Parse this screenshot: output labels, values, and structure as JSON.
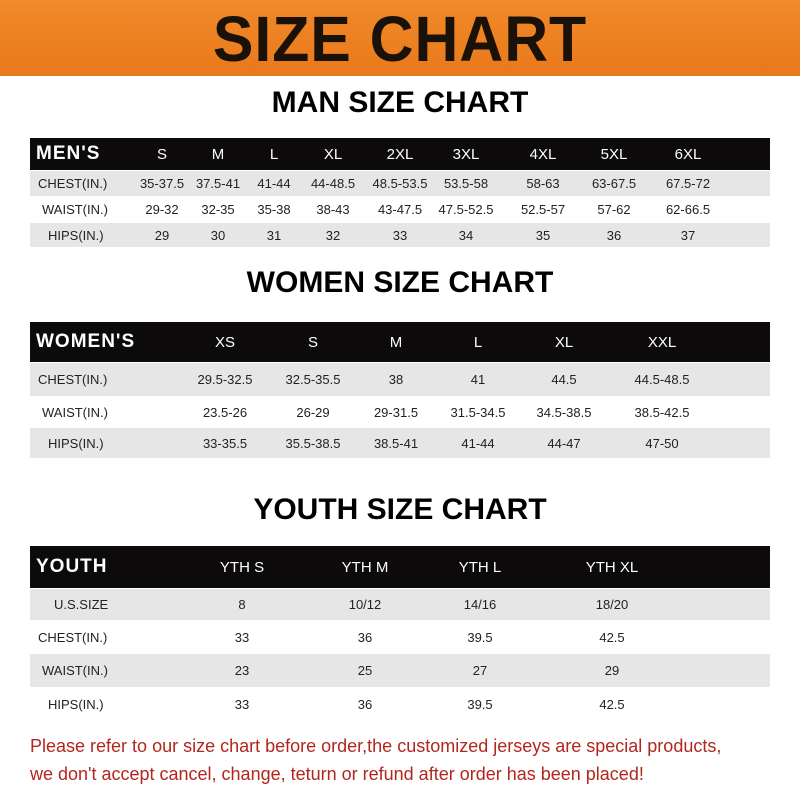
{
  "banner": {
    "title": "SIZE CHART",
    "color": "#ee8322"
  },
  "men": {
    "title": "MAN SIZE CHART",
    "header": [
      "MEN'S",
      "S",
      "M",
      "L",
      "XL",
      "2XL",
      "3XL",
      "4XL",
      "5XL",
      "6XL"
    ],
    "rows": [
      [
        "CHEST(IN.)",
        "35-37.5",
        "37.5-41",
        "41-44",
        "44-48.5",
        "48.5-53.5",
        "53.5-58",
        "58-63",
        "63-67.5",
        "67.5-72"
      ],
      [
        "WAIST(IN.)",
        "29-32",
        "32-35",
        "35-38",
        "38-43",
        "43-47.5",
        "47.5-52.5",
        "52.5-57",
        "57-62",
        "62-66.5"
      ],
      [
        "HIPS(IN.)",
        "29",
        "30",
        "31",
        "32",
        "33",
        "34",
        "35",
        "36",
        "37"
      ]
    ]
  },
  "women": {
    "title": "WOMEN SIZE CHART",
    "header": [
      "WOMEN'S",
      "XS",
      "S",
      "M",
      "L",
      "XL",
      "XXL"
    ],
    "rows": [
      [
        "CHEST(IN.)",
        "29.5-32.5",
        "32.5-35.5",
        "38",
        "41",
        "44.5",
        "44.5-48.5"
      ],
      [
        "WAIST(IN.)",
        "23.5-26",
        "26-29",
        "29-31.5",
        "31.5-34.5",
        "34.5-38.5",
        "38.5-42.5"
      ],
      [
        "HIPS(IN.)",
        "33-35.5",
        "35.5-38.5",
        "38.5-41",
        "41-44",
        "44-47",
        "47-50"
      ]
    ]
  },
  "youth": {
    "title": "YOUTH SIZE CHART",
    "header": [
      "YOUTH",
      "YTH S",
      "YTH M",
      "YTH L",
      "YTH XL"
    ],
    "rows": [
      [
        "U.S.SIZE",
        "8",
        "10/12",
        "14/16",
        "18/20"
      ],
      [
        "CHEST(IN.)",
        "33",
        "36",
        "39.5",
        "42.5"
      ],
      [
        "WAIST(IN.)",
        "23",
        "25",
        "27",
        "29"
      ],
      [
        "HIPS(IN.)",
        "33",
        "36",
        "39.5",
        "42.5"
      ]
    ]
  },
  "notice": {
    "line1": "Please refer to our size chart before order,the customized jerseys are special products,",
    "line2": "we don't accept cancel, change, teturn or refund after order has been placed!",
    "color": "#b3261e"
  }
}
